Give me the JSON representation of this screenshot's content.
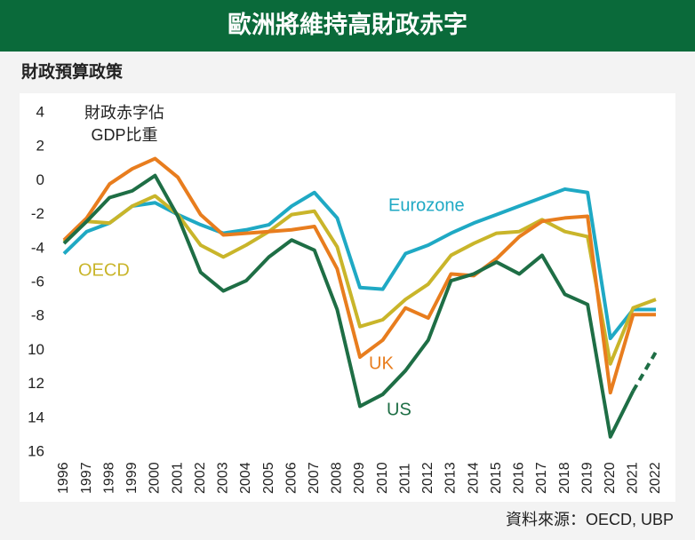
{
  "header": {
    "title": "歐洲將維持高財政赤字"
  },
  "chart_data": {
    "type": "line",
    "title": "財政預算政策",
    "y_label_lines": [
      "財政赤字佔",
      "GDP比重"
    ],
    "source": "資料來源：OECD, UBP",
    "categories": [
      "1996",
      "1997",
      "1998",
      "1999",
      "2000",
      "2001",
      "2002",
      "2003",
      "2004",
      "2005",
      "2006",
      "2007",
      "2008",
      "2009",
      "2010",
      "2011",
      "2012",
      "2013",
      "2014",
      "2015",
      "2016",
      "2017",
      "2018",
      "2019",
      "2020",
      "2021",
      "2022"
    ],
    "ylim": [
      -16,
      4
    ],
    "yticks": [
      4,
      2,
      0,
      -2,
      -4,
      -6,
      -8,
      {
        "value": -10,
        "label": "10"
      },
      {
        "value": -12,
        "label": "12"
      },
      {
        "value": -14,
        "label": "14"
      },
      {
        "value": -16,
        "label": "16"
      }
    ],
    "grid": false,
    "series": [
      {
        "name": "Eurozone",
        "color": "#1fa9c4",
        "values": [
          -4.3,
          -3.0,
          -2.5,
          -1.5,
          -1.3,
          -2.0,
          -2.6,
          -3.1,
          -2.9,
          -2.6,
          -1.5,
          -0.7,
          -2.2,
          -6.3,
          -6.4,
          -4.3,
          -3.8,
          -3.1,
          -2.5,
          -2.0,
          -1.5,
          -1.0,
          -0.5,
          -0.7,
          -9.3,
          -7.6,
          -7.6
        ]
      },
      {
        "name": "OECD",
        "color": "#c9b52a",
        "values": [
          -3.6,
          -2.4,
          -2.5,
          -1.5,
          -0.9,
          -2.0,
          -3.8,
          -4.5,
          -3.8,
          -3.0,
          -2.0,
          -1.8,
          -3.9,
          -8.6,
          -8.2,
          -7.0,
          -6.1,
          -4.4,
          -3.7,
          -3.1,
          -3.0,
          -2.3,
          -3.0,
          -3.3,
          -10.8,
          -7.5,
          -7.0
        ]
      },
      {
        "name": "UK",
        "color": "#e87d1e",
        "values": [
          -3.5,
          -2.2,
          -0.2,
          0.7,
          1.3,
          0.2,
          -2.0,
          -3.2,
          -3.1,
          -3.0,
          -2.9,
          -2.7,
          -5.2,
          -10.4,
          -9.4,
          -7.5,
          -8.1,
          -5.5,
          -5.6,
          -4.6,
          -3.3,
          -2.4,
          -2.2,
          -2.1,
          -12.5,
          -7.9,
          -7.9
        ]
      },
      {
        "name": "US",
        "color": "#1e6e45",
        "dashed_last_segment": true,
        "values": [
          -3.7,
          -2.4,
          -1.0,
          -0.6,
          0.3,
          -2.1,
          -5.4,
          -6.5,
          -5.9,
          -4.5,
          -3.5,
          -4.1,
          -7.6,
          -13.3,
          -12.6,
          -11.2,
          -9.4,
          -5.9,
          -5.5,
          -4.8,
          -5.5,
          -4.4,
          -6.7,
          -7.3,
          -15.1,
          -12.4,
          -10.1
        ]
      }
    ]
  }
}
